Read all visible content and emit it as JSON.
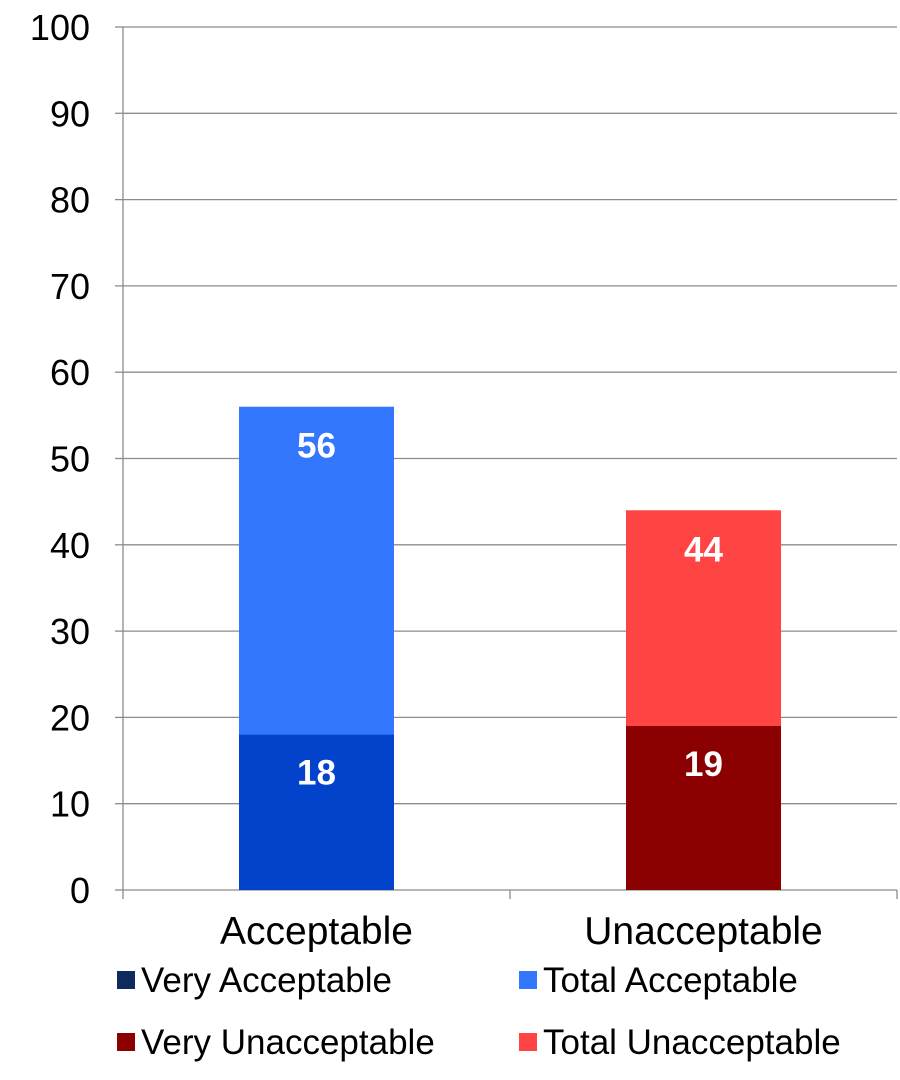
{
  "chart_data": {
    "type": "bar",
    "stacked": "overlay",
    "categories": [
      "Acceptable",
      "Unacceptable"
    ],
    "series": [
      {
        "name": "Very Acceptable",
        "values": [
          18,
          null
        ],
        "color": "#0343cc"
      },
      {
        "name": "Total Acceptable",
        "values": [
          56,
          null
        ],
        "color": "#3377ff"
      },
      {
        "name": "Very Unacceptable",
        "values": [
          null,
          19
        ],
        "color": "#8b0000"
      },
      {
        "name": "Total Unacceptable",
        "values": [
          null,
          44
        ],
        "color": "#ff4444"
      }
    ],
    "legend_swatch_colors": [
      "#0f2a5c",
      "#3377ff",
      "#8b0000",
      "#ff4444"
    ],
    "ylim": [
      0,
      100
    ],
    "yticks": [
      0,
      10,
      20,
      30,
      40,
      50,
      60,
      70,
      80,
      90,
      100
    ],
    "grid": true,
    "legend_position": "bottom",
    "title": "",
    "xlabel": "",
    "ylabel": ""
  }
}
